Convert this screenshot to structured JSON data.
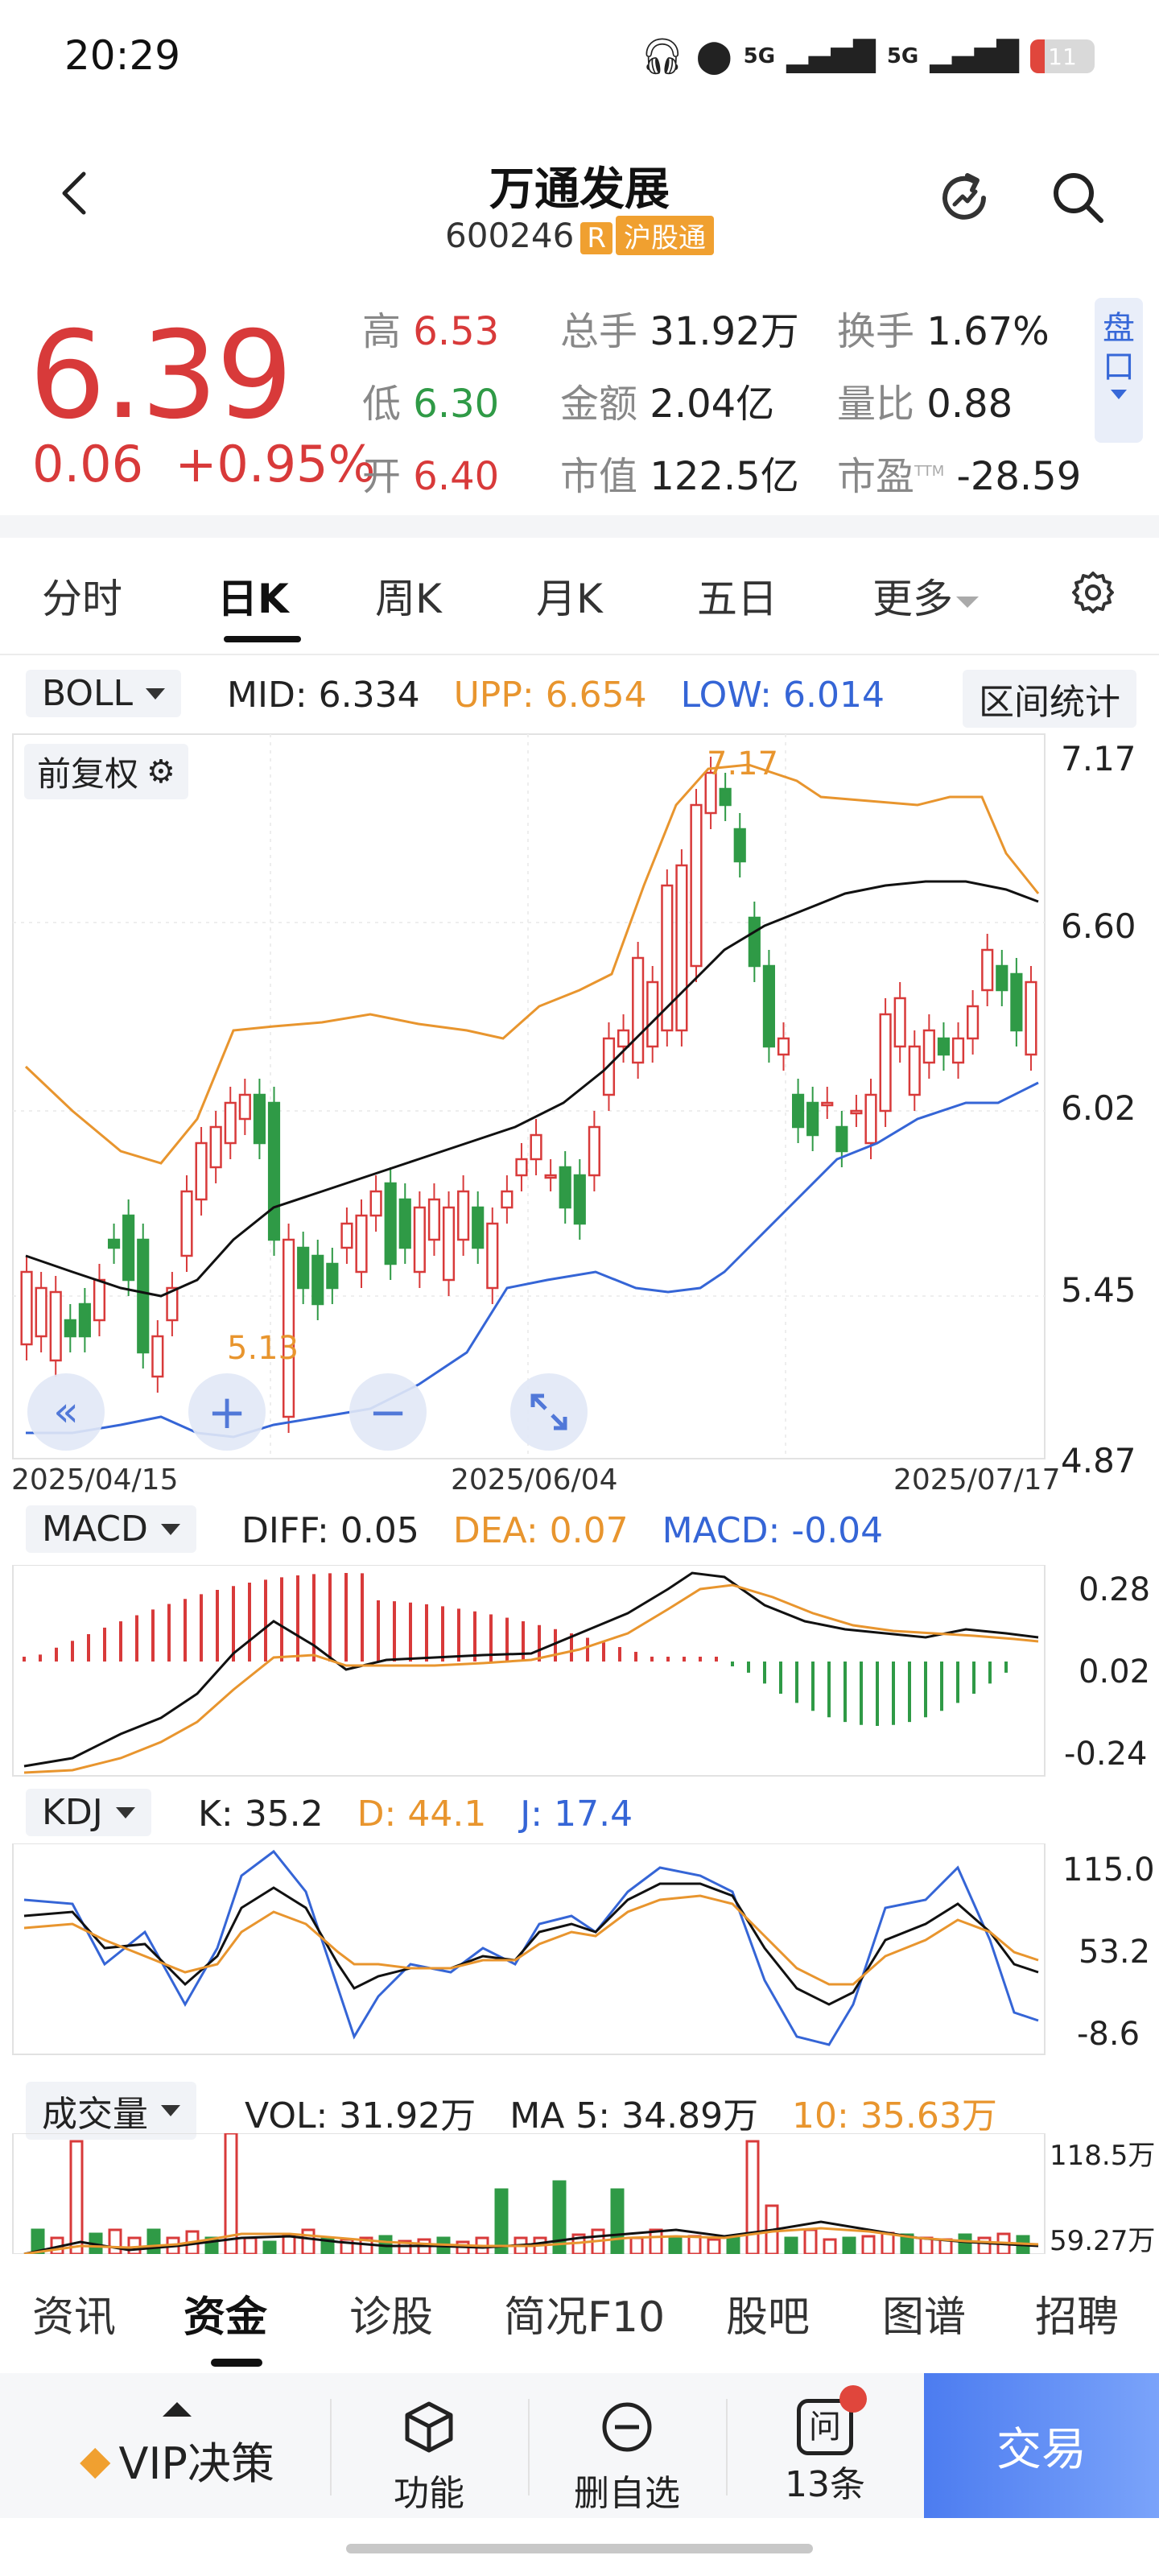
{
  "status_bar": {
    "time": "20:29",
    "net1": "5G",
    "net2": "5G",
    "battery": "11"
  },
  "header": {
    "title": "万通发展",
    "code": "600246",
    "badge_r": "R",
    "badge_market": "沪股通"
  },
  "quote": {
    "price": "6.39",
    "change": "0.06",
    "change_pct": "+0.95%",
    "high_label": "高",
    "high": "6.53",
    "low_label": "低",
    "low": "6.30",
    "open_label": "开",
    "open": "6.40",
    "volume_label": "总手",
    "volume": "31.92万",
    "amount_label": "金额",
    "amount": "2.04亿",
    "mcap_label": "市值",
    "mcap": "122.5亿",
    "turnover_label": "换手",
    "turnover": "1.67%",
    "vol_ratio_label": "量比",
    "vol_ratio": "0.88",
    "pe_label": "市盈",
    "pe_sup": "TTM",
    "pe": "-28.59",
    "panel_tab": "盘口"
  },
  "tabs": [
    "分时",
    "日K",
    "周K",
    "月K",
    "五日",
    "更多"
  ],
  "main_chart": {
    "indicator": "BOLL",
    "mid_label": "MID:",
    "mid": "6.334",
    "upp_label": "UPP:",
    "upp": "6.654",
    "low_label": "LOW:",
    "low": "6.014",
    "range_stats": "区间统计",
    "adjust": "前复权",
    "y_ticks": [
      "7.17",
      "6.60",
      "6.02",
      "5.45",
      "4.87"
    ],
    "x_dates": [
      "2025/04/15",
      "2025/06/04",
      "2025/07/17"
    ],
    "max_label": "7.17",
    "min_label": "5.13"
  },
  "macd": {
    "indicator": "MACD",
    "diff_label": "DIFF:",
    "diff": "0.05",
    "dea_label": "DEA:",
    "dea": "0.07",
    "macd_label": "MACD:",
    "macd": "-0.04",
    "y_ticks": [
      "0.28",
      "0.02",
      "-0.24"
    ]
  },
  "kdj": {
    "indicator": "KDJ",
    "k_label": "K:",
    "k": "35.2",
    "d_label": "D:",
    "d": "44.1",
    "j_label": "J:",
    "j": "17.4",
    "y_ticks": [
      "115.0",
      "53.2",
      "-8.6"
    ]
  },
  "volume": {
    "indicator": "成交量",
    "vol_label": "VOL:",
    "vol": "31.92万",
    "ma5_label": "MA 5:",
    "ma5": "34.89万",
    "ma10_label": "10:",
    "ma10": "35.63万",
    "y_ticks": [
      "118.5万",
      "59.27万"
    ]
  },
  "bottom_tabs": [
    "资讯",
    "资金",
    "诊股",
    "简况F10",
    "股吧",
    "图谱",
    "招聘"
  ],
  "bottom_bar": {
    "vip": "VIP决策",
    "func": "功能",
    "remove": "删自选",
    "ask_count": "13条",
    "trade": "交易"
  },
  "colors": {
    "up": "#d83a3a",
    "down": "#2f9a46",
    "mid": "#111111",
    "upper": "#e8952e",
    "lower": "#3565d6"
  }
}
